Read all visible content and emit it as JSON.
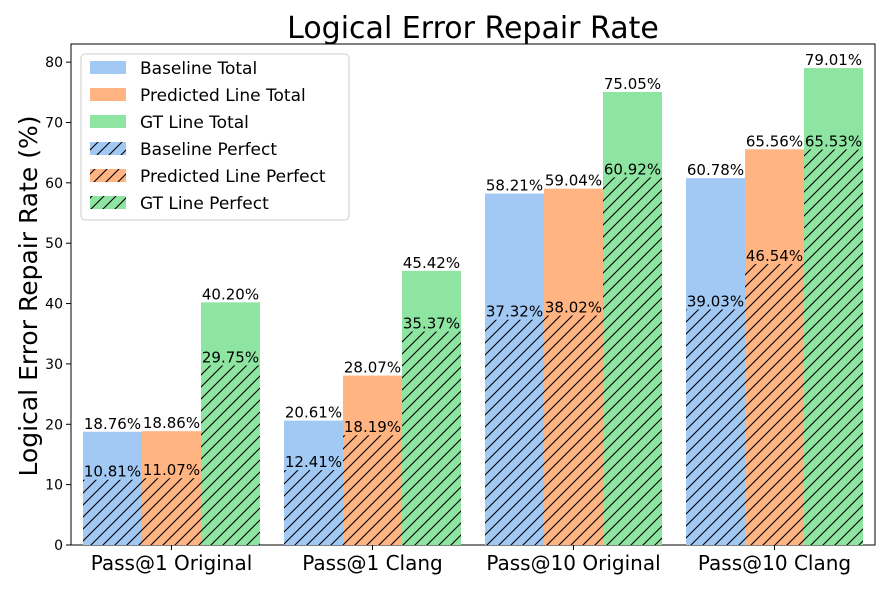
{
  "chart_data": {
    "type": "bar",
    "title": "Logical Error Repair Rate",
    "xlabel": "",
    "ylabel": "Logical Error Repair Rate (%)",
    "ylim": [
      0,
      83
    ],
    "yticks": [
      0,
      10,
      20,
      30,
      40,
      50,
      60,
      70,
      80
    ],
    "grid": false,
    "legend_position": "top-left",
    "categories": [
      "Pass@1 Original",
      "Pass@1 Clang",
      "Pass@10 Original",
      "Pass@10 Clang"
    ],
    "series": [
      {
        "name": "Baseline Total",
        "values": [
          18.76,
          20.61,
          58.21,
          60.78
        ],
        "color": "#a1c9f4",
        "style": "solid"
      },
      {
        "name": "Predicted Line Total",
        "values": [
          18.86,
          28.07,
          59.04,
          65.56
        ],
        "color": "#ffb482",
        "style": "solid"
      },
      {
        "name": "GT Line Total",
        "values": [
          40.2,
          45.42,
          75.05,
          79.01
        ],
        "color": "#8de5a1",
        "style": "solid"
      },
      {
        "name": "Baseline Perfect",
        "values": [
          10.81,
          12.41,
          37.32,
          39.03
        ],
        "color": "#a1c9f4",
        "style": "hatched"
      },
      {
        "name": "Predicted Line Perfect",
        "values": [
          11.07,
          18.19,
          38.02,
          46.54
        ],
        "color": "#ffb482",
        "style": "hatched"
      },
      {
        "name": "GT Line Perfect",
        "values": [
          29.75,
          35.37,
          60.92,
          65.53
        ],
        "color": "#8de5a1",
        "style": "hatched"
      }
    ],
    "value_labels": {
      "Baseline Total": [
        "18.76%",
        "20.61%",
        "58.21%",
        "60.78%"
      ],
      "Predicted Line Total": [
        "18.86%",
        "28.07%",
        "59.04%",
        "65.56%"
      ],
      "GT Line Total": [
        "40.20%",
        "45.42%",
        "75.05%",
        "79.01%"
      ],
      "Baseline Perfect": [
        "10.81%",
        "12.41%",
        "37.32%",
        "39.03%"
      ],
      "Predicted Line Perfect": [
        "11.07%",
        "18.19%",
        "38.02%",
        "46.54%"
      ],
      "GT Line Perfect": [
        "29.75%",
        "35.37%",
        "60.92%",
        "65.53%"
      ]
    }
  }
}
